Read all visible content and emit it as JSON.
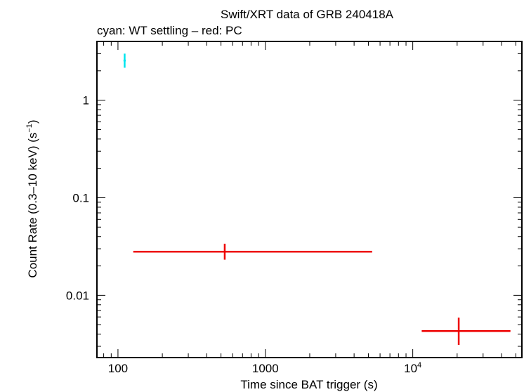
{
  "chart_data": {
    "type": "scatter",
    "title": "Swift/XRT data of GRB 240418A",
    "subtitle": "cyan: WT settling – red: PC",
    "xlabel": "Time since BAT trigger (s)",
    "ylabel_main": "Count Rate (0.3–10 keV) (s",
    "ylabel_sup": "−1",
    "ylabel_end": ")",
    "x_scale": "log",
    "y_scale": "log",
    "xlim": [
      72,
      55000
    ],
    "ylim": [
      0.0023,
      4.0
    ],
    "grid": false,
    "x_ticks": [
      {
        "value": 100,
        "label": "100",
        "sup": ""
      },
      {
        "value": 1000,
        "label": "1000",
        "sup": ""
      },
      {
        "value": 10000,
        "label": "10",
        "sup": "4"
      }
    ],
    "y_ticks": [
      {
        "value": 1,
        "label": "1"
      },
      {
        "value": 0.1,
        "label": "0.1"
      },
      {
        "value": 0.01,
        "label": "0.01"
      }
    ],
    "series": [
      {
        "color": "#00e5ee",
        "points": [
          {
            "x": 111,
            "xmin": 109,
            "xmax": 113,
            "y": 2.55,
            "ymin": 2.15,
            "ymax": 3.0
          }
        ]
      },
      {
        "color": "#ee0000",
        "points": [
          {
            "x": 530,
            "xmin": 127,
            "xmax": 5300,
            "y": 0.028,
            "ymin": 0.0232,
            "ymax": 0.0338
          },
          {
            "x": 20500,
            "xmin": 11500,
            "xmax": 46000,
            "y": 0.0043,
            "ymin": 0.0031,
            "ymax": 0.0059
          }
        ]
      }
    ]
  }
}
